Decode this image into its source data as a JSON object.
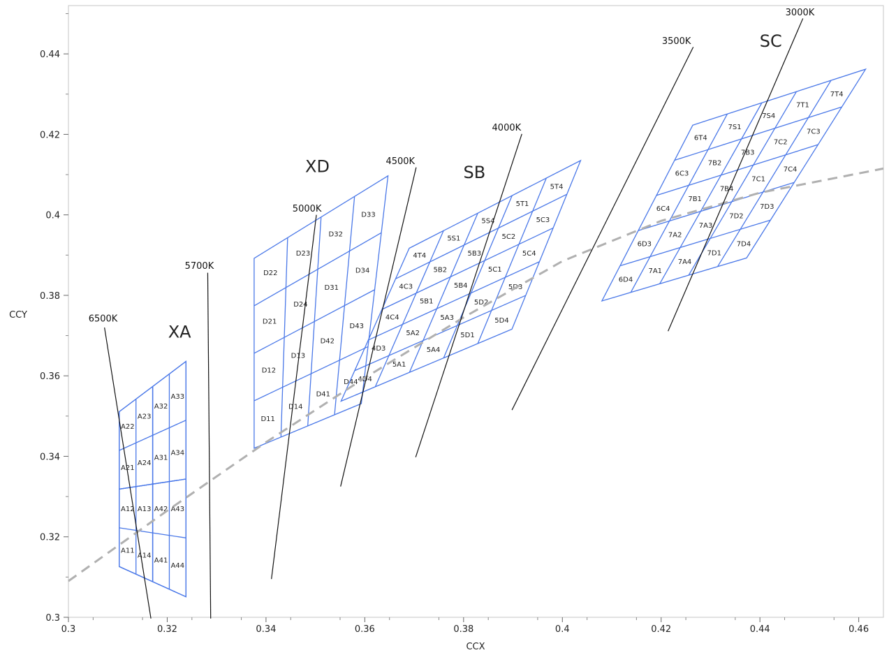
{
  "chart_data": {
    "type": "scatter",
    "xlabel": "CCX",
    "ylabel": "CCY",
    "xlim": [
      0.3,
      0.465
    ],
    "ylim": [
      0.3,
      0.452
    ],
    "x_ticks": [
      "0.3",
      "0.32",
      "0.34",
      "0.36",
      "0.38",
      "0.4",
      "0.42",
      "0.44",
      "0.46"
    ],
    "y_ticks": [
      "0.3",
      "0.32",
      "0.34",
      "0.36",
      "0.38",
      "0.4",
      "0.42",
      "0.44"
    ],
    "grid": false,
    "colors": {
      "bins": "#4a78e8",
      "isotherms": "#111111",
      "locus": "#b0b0b0"
    },
    "locus": {
      "style": "dashed",
      "x": [
        0.3,
        0.32,
        0.34,
        0.36,
        0.38,
        0.4,
        0.42,
        0.44,
        0.465
      ],
      "y": [
        0.309,
        0.3265,
        0.3435,
        0.3595,
        0.3745,
        0.3885,
        0.3985,
        0.4055,
        0.4115
      ]
    },
    "isotherms": [
      {
        "label": "6500K",
        "x1": 0.3073,
        "y1": 0.372,
        "x2": 0.3167,
        "y2": 0.2997,
        "lx": 0.307,
        "ly": 0.3735
      },
      {
        "label": "5700K",
        "x1": 0.3282,
        "y1": 0.3856,
        "x2": 0.3288,
        "y2": 0.2997,
        "lx": 0.3265,
        "ly": 0.3866
      },
      {
        "label": "5000K",
        "x1": 0.3502,
        "y1": 0.4,
        "x2": 0.3411,
        "y2": 0.3095,
        "lx": 0.3483,
        "ly": 0.4008
      },
      {
        "label": "4500K",
        "x1": 0.3704,
        "y1": 0.4118,
        "x2": 0.3551,
        "y2": 0.3325,
        "lx": 0.3672,
        "ly": 0.4126
      },
      {
        "label": "4000K",
        "x1": 0.3918,
        "y1": 0.4201,
        "x2": 0.3703,
        "y2": 0.3398,
        "lx": 0.3887,
        "ly": 0.4209
      },
      {
        "label": "3500K",
        "x1": 0.4265,
        "y1": 0.4417,
        "x2": 0.3898,
        "y2": 0.3515,
        "lx": 0.4231,
        "ly": 0.4425
      },
      {
        "label": "3000K",
        "x1": 0.4487,
        "y1": 0.4488,
        "x2": 0.4214,
        "y2": 0.3711,
        "lx": 0.4481,
        "ly": 0.4496
      }
    ],
    "groups": [
      {
        "name": "XA",
        "lx": 0.3225,
        "ly": 0.3695,
        "q": [
          [
            0.3103,
            0.3511
          ],
          [
            0.3238,
            0.3636
          ],
          [
            0.3238,
            0.3051
          ],
          [
            0.3103,
            0.3126
          ]
        ],
        "cells": [
          [
            0.3198,
            0.3471
          ],
          [
            0.3305,
            0.3578
          ],
          [
            0.3296,
            0.3196
          ],
          [
            0.3198,
            0.3148
          ]
        ],
        "rows": [
          [
            "A22",
            "A23",
            "A32",
            "A33"
          ],
          [
            "A21",
            "A24",
            "A31",
            "A34"
          ],
          [
            "A12",
            "A13",
            "A42",
            "A43"
          ],
          [
            "A11",
            "A14",
            "A41",
            "A44"
          ]
        ]
      },
      {
        "name": "XD",
        "lx": 0.3504,
        "ly": 0.4106,
        "q": [
          [
            0.3376,
            0.3892
          ],
          [
            0.3647,
            0.4097
          ],
          [
            0.3593,
            0.3531
          ],
          [
            0.3376,
            0.342
          ]
        ],
        "rows": [
          [
            "D22",
            "D23",
            "D32",
            "D33"
          ],
          [
            "D21",
            "D24",
            "D31",
            "D34"
          ],
          [
            "D12",
            "D13",
            "D42",
            "D43"
          ],
          [
            "D11",
            "D14",
            "D41",
            "D44"
          ]
        ]
      },
      {
        "name": "SB",
        "lx": 0.3822,
        "ly": 0.4091,
        "q": [
          [
            0.369,
            0.3917
          ],
          [
            0.4037,
            0.4135
          ],
          [
            0.3898,
            0.3716
          ],
          [
            0.3552,
            0.3537
          ]
        ],
        "rows": [
          [
            "4T4",
            "5S1",
            "5S4",
            "5T1",
            "5T4"
          ],
          [
            "4C3",
            "5B2",
            "5B3",
            "5C2",
            "5C3"
          ],
          [
            "4C4",
            "5B1",
            "5B4",
            "5C1",
            "5C4"
          ],
          [
            "4D3",
            "5A2",
            "5A3",
            "5D2",
            "5D3"
          ],
          [
            "4D4",
            "5A1",
            "5A4",
            "5D1",
            "5D4"
          ]
        ]
      },
      {
        "name": "SC",
        "lx": 0.4422,
        "ly": 0.4418,
        "q": [
          [
            0.4264,
            0.4223
          ],
          [
            0.4614,
            0.4362
          ],
          [
            0.4373,
            0.3893
          ],
          [
            0.408,
            0.3786
          ]
        ],
        "rows": [
          [
            "6T4",
            "7S1",
            "7S4",
            "7T1",
            "7T4"
          ],
          [
            "6C3",
            "7B2",
            "7B3",
            "7C2",
            "7C3"
          ],
          [
            "6C4",
            "7B1",
            "7B4",
            "7C1",
            "7C4"
          ],
          [
            "6D3",
            "7A2",
            "7A3",
            "7D2",
            "7D3"
          ],
          [
            "6D4",
            "7A1",
            "7A4",
            "7D1",
            "7D4"
          ]
        ]
      }
    ]
  }
}
